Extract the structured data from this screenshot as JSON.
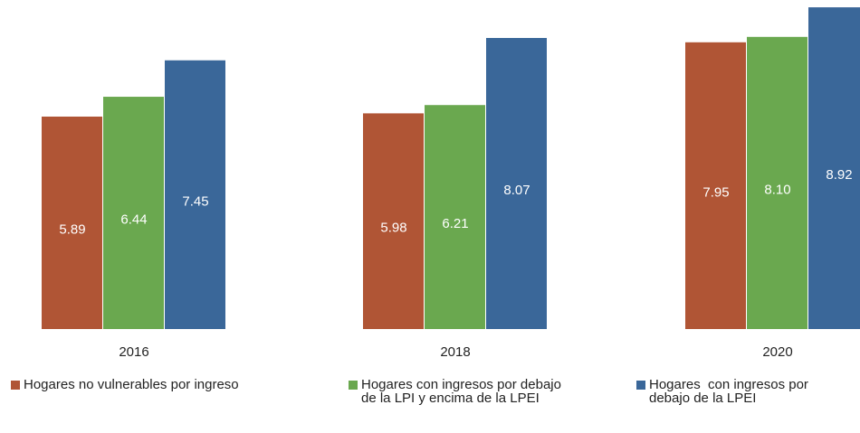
{
  "chart_data": {
    "type": "bar",
    "categories": [
      "2016",
      "2018",
      "2020"
    ],
    "series": [
      {
        "name": "Hogares no vulnerables por ingreso",
        "color": "#b05535",
        "values": [
          5.89,
          5.98,
          7.95
        ],
        "value_labels": [
          "5.89",
          "5.98",
          "7.95"
        ]
      },
      {
        "name": "Hogares con ingresos por debajo de la LPI y encima de la LPEI",
        "color": "#6aa84f",
        "values": [
          6.44,
          6.21,
          8.1
        ],
        "value_labels": [
          "6.44",
          "6.21",
          "8.10"
        ]
      },
      {
        "name": "Hogares  con ingresos por debajo de la LPEI",
        "color": "#3a6799",
        "values": [
          7.45,
          8.07,
          8.92
        ],
        "value_labels": [
          "7.45",
          "8.07",
          "8.92"
        ]
      }
    ],
    "legend": "bottom"
  }
}
